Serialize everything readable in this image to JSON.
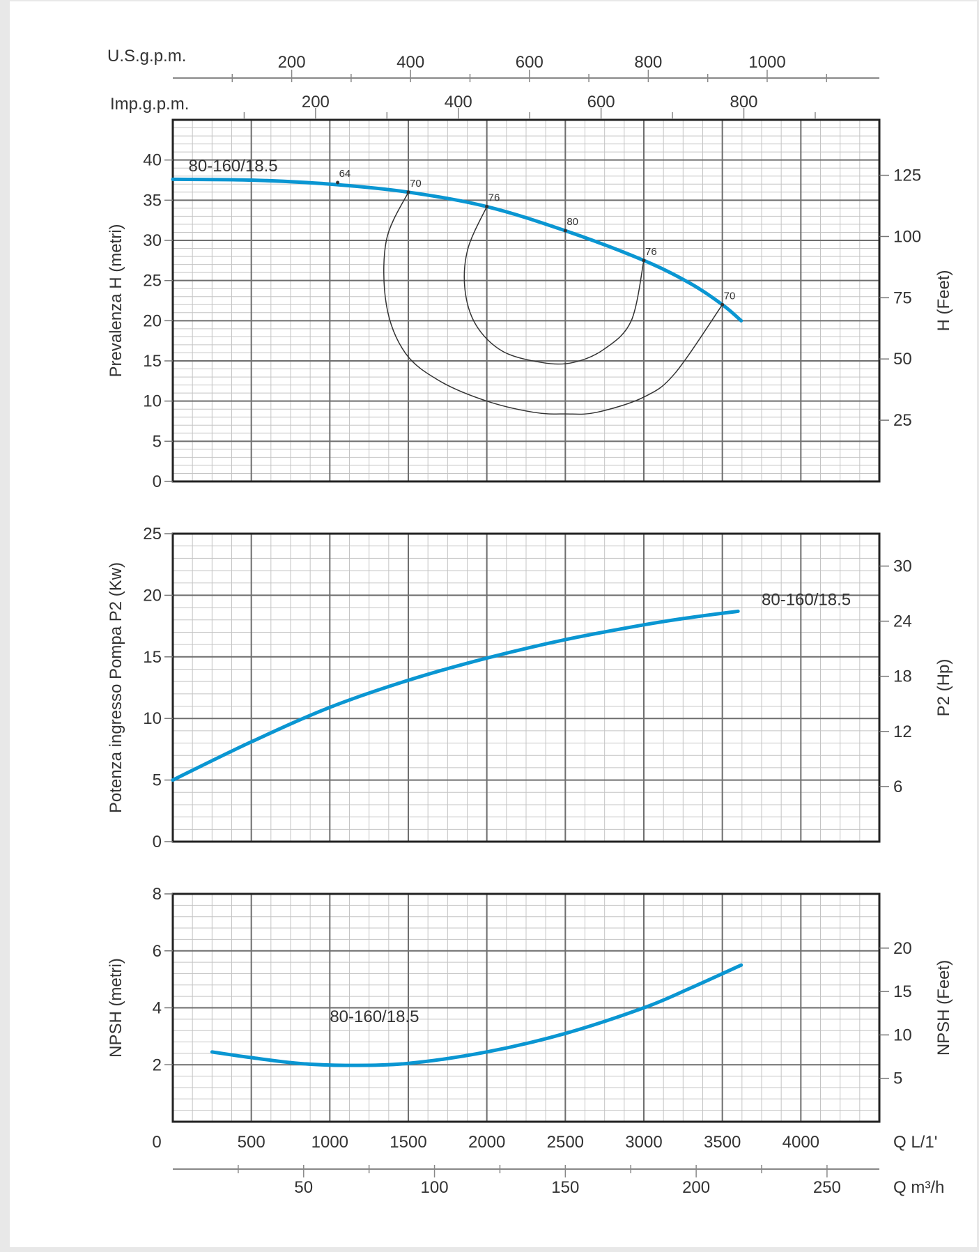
{
  "colors": {
    "curve": "#0a96d2",
    "grid_major": "#6e6e6e",
    "grid_minor": "#c4c4c4",
    "frame": "#222222",
    "eff": "#333333"
  },
  "top_axes": {
    "usgpm_label": "U.S.g.p.m.",
    "usgpm_ticks": [
      "200",
      "400",
      "600",
      "800",
      "1000"
    ],
    "impgpm_label": "Imp.g.p.m.",
    "impgpm_ticks": [
      "200",
      "400",
      "600",
      "800"
    ]
  },
  "bottom_axes": {
    "lmin_label": "Q L/1'",
    "lmin_ticks": [
      "0",
      "500",
      "1000",
      "1500",
      "2000",
      "2500",
      "3000",
      "3500",
      "4000"
    ],
    "m3h_label": "Q m³/h",
    "m3h_ticks": [
      "50",
      "100",
      "150",
      "200",
      "250"
    ]
  },
  "chart_data": [
    {
      "type": "line",
      "ylabel": "Prevalenza H (metri)",
      "ylabel_right": "H (Feet)",
      "xlim": [
        0,
        4500
      ],
      "ylim": [
        0,
        45
      ],
      "yticks": [
        "0",
        "5",
        "10",
        "15",
        "20",
        "25",
        "30",
        "35",
        "40"
      ],
      "yticks_right": [
        "25",
        "50",
        "75",
        "100",
        "125"
      ],
      "series": [
        {
          "name": "80-160/18.5",
          "x": [
            0,
            500,
            1000,
            1500,
            2000,
            2500,
            3000,
            3300,
            3500,
            3620
          ],
          "y": [
            37.6,
            37.5,
            37.0,
            36.0,
            34.2,
            31.2,
            27.5,
            24.6,
            22.0,
            20.0
          ]
        }
      ],
      "efficiency_labels": [
        {
          "text": "64",
          "x": 1050,
          "y": 37.2
        },
        {
          "text": "70",
          "x": 1500,
          "y": 36.0
        },
        {
          "text": "76",
          "x": 2000,
          "y": 34.2
        },
        {
          "text": "80",
          "x": 2500,
          "y": 31.2
        },
        {
          "text": "76",
          "x": 3000,
          "y": 27.5
        },
        {
          "text": "70",
          "x": 3500,
          "y": 22.0
        }
      ],
      "efficiency_isolines": [
        {
          "label": "70",
          "points": [
            [
              1500,
              36.0
            ],
            [
              1360,
              30
            ],
            [
              1360,
              22
            ],
            [
              1480,
              16
            ],
            [
              1700,
              12.5
            ],
            [
              2000,
              10
            ],
            [
              2300,
              8.6
            ],
            [
              2500,
              8.4
            ],
            [
              2700,
              8.6
            ],
            [
              3000,
              10.5
            ],
            [
              3200,
              13.5
            ],
            [
              3500,
              22.0
            ]
          ]
        },
        {
          "label": "76",
          "points": [
            [
              2000,
              34.2
            ],
            [
              1880,
              29
            ],
            [
              1860,
              24
            ],
            [
              1930,
              19.5
            ],
            [
              2100,
              16.2
            ],
            [
              2350,
              14.8
            ],
            [
              2550,
              14.8
            ],
            [
              2750,
              16.5
            ],
            [
              2920,
              20
            ],
            [
              3000,
              27.5
            ]
          ]
        }
      ]
    },
    {
      "type": "line",
      "ylabel": "Potenza ingresso Pompa P2 (Kw)",
      "ylabel_right": "P2 (Hp)",
      "xlim": [
        0,
        4500
      ],
      "ylim": [
        0,
        25
      ],
      "yticks": [
        "0",
        "5",
        "10",
        "15",
        "20",
        "25"
      ],
      "yticks_right": [
        "6",
        "12",
        "18",
        "24",
        "30"
      ],
      "series": [
        {
          "name": "80-160/18.5",
          "x": [
            0,
            500,
            1000,
            1500,
            2000,
            2500,
            3000,
            3300,
            3600
          ],
          "y": [
            5.0,
            8.1,
            10.9,
            13.1,
            14.9,
            16.4,
            17.6,
            18.2,
            18.7
          ]
        }
      ]
    },
    {
      "type": "line",
      "ylabel": "NPSH (metri)",
      "ylabel_right": "NPSH (Feet)",
      "xlim": [
        0,
        4500
      ],
      "ylim": [
        0,
        8
      ],
      "yticks": [
        "2",
        "4",
        "6",
        "8"
      ],
      "yticks_right": [
        "5",
        "10",
        "15",
        "20"
      ],
      "series": [
        {
          "name": "80-160/18.5",
          "x": [
            250,
            500,
            800,
            1100,
            1500,
            2000,
            2500,
            3000,
            3300,
            3620
          ],
          "y": [
            2.45,
            2.25,
            2.05,
            1.98,
            2.05,
            2.45,
            3.1,
            4.0,
            4.7,
            5.5
          ]
        }
      ]
    }
  ]
}
